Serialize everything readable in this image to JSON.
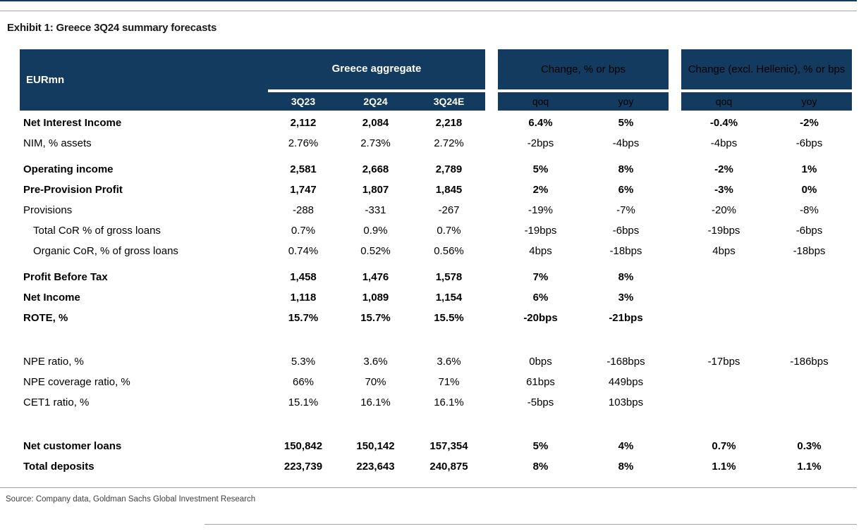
{
  "exhibit_title": "Exhibit 1: Greece 3Q24 summary forecasts",
  "source_note": "Source: Company data, Goldman Sachs Global Investment Research",
  "colors": {
    "navy": "#133a5f",
    "rule_gray": "#a3a3a3"
  },
  "table": {
    "corner_label": "EURmn",
    "groups": [
      {
        "label": "Greece aggregate",
        "columns": [
          "3Q23",
          "2Q24",
          "3Q24E"
        ]
      },
      {
        "label": "Change, % or bps",
        "columns": [
          "qoq",
          "yoy"
        ]
      },
      {
        "label": "Change (excl. Hellenic), % or bps",
        "columns": [
          "qoq",
          "yoy"
        ]
      }
    ],
    "rows": [
      {
        "label": "Net Interest Income",
        "bold": true,
        "indent": false,
        "values": [
          "2,112",
          "2,084",
          "2,218",
          "6.4%",
          "5%",
          "-0.4%",
          "-2%"
        ]
      },
      {
        "label": "NIM, % assets",
        "bold": false,
        "indent": false,
        "values": [
          "2.76%",
          "2.73%",
          "2.72%",
          "-2bps",
          "-4bps",
          "-4bps",
          "-6bps"
        ]
      },
      {
        "type": "gap"
      },
      {
        "label": "Operating income",
        "bold": true,
        "indent": false,
        "values": [
          "2,581",
          "2,668",
          "2,789",
          "5%",
          "8%",
          "-2%",
          "1%"
        ]
      },
      {
        "label": "Pre-Provision Profit",
        "bold": true,
        "indent": false,
        "values": [
          "1,747",
          "1,807",
          "1,845",
          "2%",
          "6%",
          "-3%",
          "0%"
        ]
      },
      {
        "label": "Provisions",
        "bold": false,
        "indent": false,
        "values": [
          "-288",
          "-331",
          "-267",
          "-19%",
          "-7%",
          "-20%",
          "-8%"
        ]
      },
      {
        "label": "Total CoR % of gross loans",
        "bold": false,
        "indent": true,
        "values": [
          "0.7%",
          "0.9%",
          "0.7%",
          "-19bps",
          "-6bps",
          "-19bps",
          "-6bps"
        ]
      },
      {
        "label": "Organic CoR, % of gross loans",
        "bold": false,
        "indent": true,
        "values": [
          "0.74%",
          "0.52%",
          "0.56%",
          "4bps",
          "-18bps",
          "4bps",
          "-18bps"
        ]
      },
      {
        "type": "gap"
      },
      {
        "label": "Profit Before Tax",
        "bold": true,
        "indent": false,
        "values": [
          "1,458",
          "1,476",
          "1,578",
          "7%",
          "8%",
          "",
          ""
        ]
      },
      {
        "label": "Net Income",
        "bold": true,
        "indent": false,
        "values": [
          "1,118",
          "1,089",
          "1,154",
          "6%",
          "3%",
          "",
          ""
        ]
      },
      {
        "label": "ROTE, %",
        "bold": true,
        "indent": false,
        "values": [
          "15.7%",
          "15.7%",
          "15.5%",
          "-20bps",
          "-21bps",
          "",
          ""
        ]
      },
      {
        "type": "blank"
      },
      {
        "label": "NPE ratio, %",
        "bold": false,
        "indent": false,
        "values": [
          "5.3%",
          "3.6%",
          "3.6%",
          "0bps",
          "-168bps",
          "-17bps",
          "-186bps"
        ]
      },
      {
        "label": "NPE coverage ratio, %",
        "bold": false,
        "indent": false,
        "values": [
          "66%",
          "70%",
          "71%",
          "61bps",
          "449bps",
          "",
          ""
        ]
      },
      {
        "label": "CET1 ratio, %",
        "bold": false,
        "indent": false,
        "values": [
          "15.1%",
          "16.1%",
          "16.1%",
          "-5bps",
          "103bps",
          "",
          ""
        ]
      },
      {
        "type": "blank"
      },
      {
        "label": "Net customer loans",
        "bold": true,
        "indent": false,
        "values": [
          "150,842",
          "150,142",
          "157,354",
          "5%",
          "4%",
          "0.7%",
          "0.3%"
        ]
      },
      {
        "label": "Total deposits",
        "bold": true,
        "indent": false,
        "values": [
          "223,739",
          "223,643",
          "240,875",
          "8%",
          "8%",
          "1.1%",
          "1.1%"
        ]
      }
    ]
  }
}
